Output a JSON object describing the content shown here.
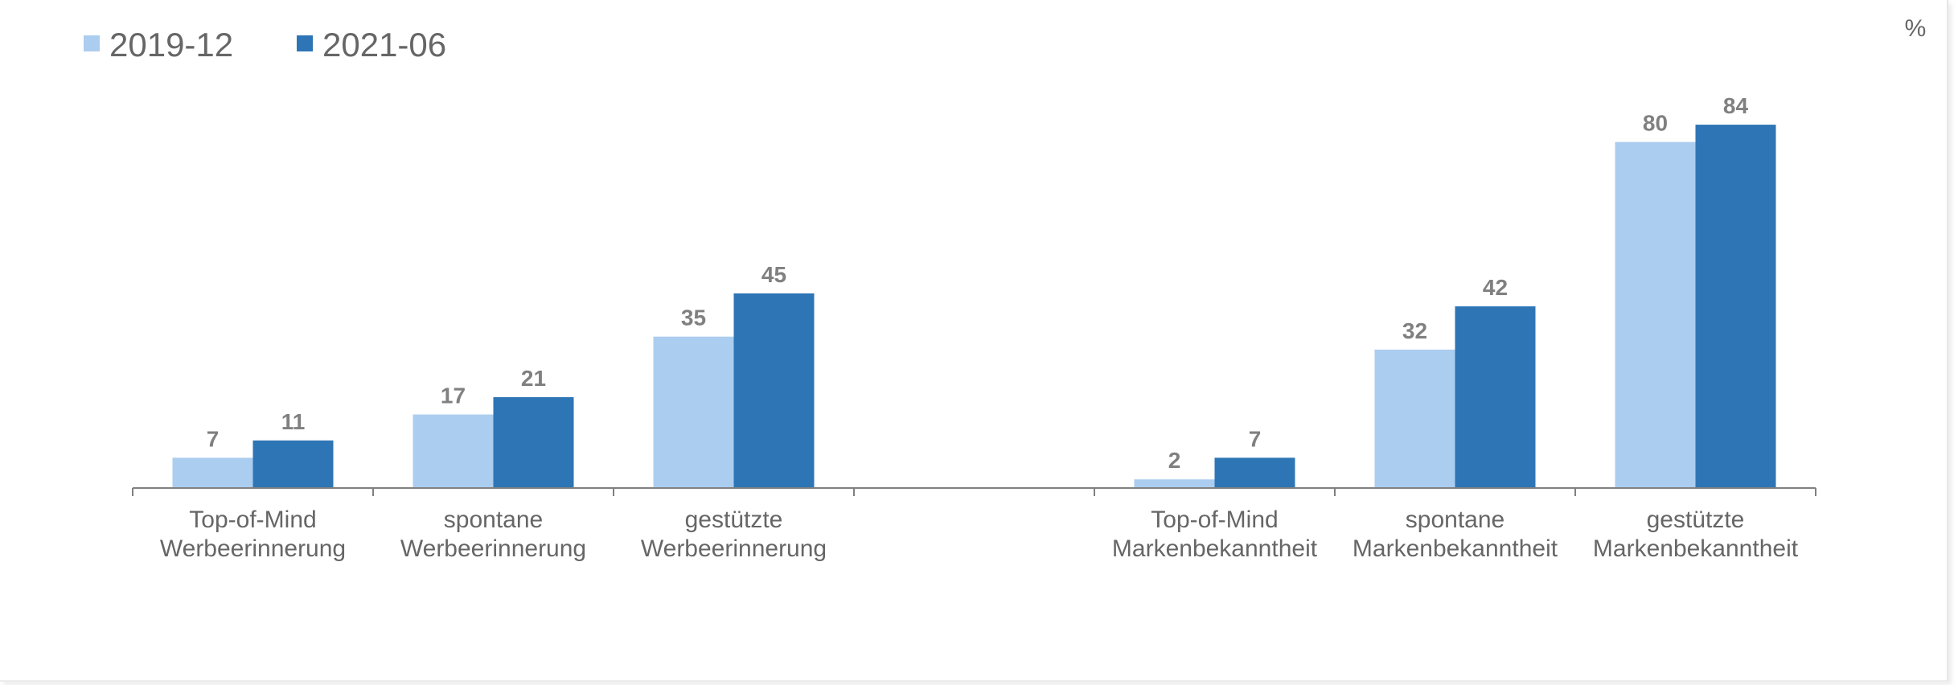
{
  "chart_data": {
    "type": "bar",
    "unit_label": "%",
    "categories": [
      [
        "Top-of-Mind",
        "Werbeerinnerung"
      ],
      [
        "spontane",
        "Werbeerinnerung"
      ],
      [
        "gestützte",
        "Werbeerinnerung"
      ],
      [
        "",
        ""
      ],
      [
        "Top-of-Mind",
        "Markenbekanntheit"
      ],
      [
        "spontane",
        "Markenbekanntheit"
      ],
      [
        "gestützte",
        "Markenbekanntheit"
      ]
    ],
    "series": [
      {
        "name": "2019-12",
        "color": "#abcdef",
        "values": [
          7,
          17,
          35,
          null,
          2,
          32,
          80
        ]
      },
      {
        "name": "2021-06",
        "color": "#2e75b6",
        "values": [
          11,
          21,
          45,
          null,
          7,
          42,
          84
        ]
      }
    ],
    "ylim": [
      0,
      90
    ],
    "grid": false,
    "legend_position": "top-left",
    "axis_color": "#808080",
    "label_color": "#666666",
    "data_label_color": "#808080"
  }
}
